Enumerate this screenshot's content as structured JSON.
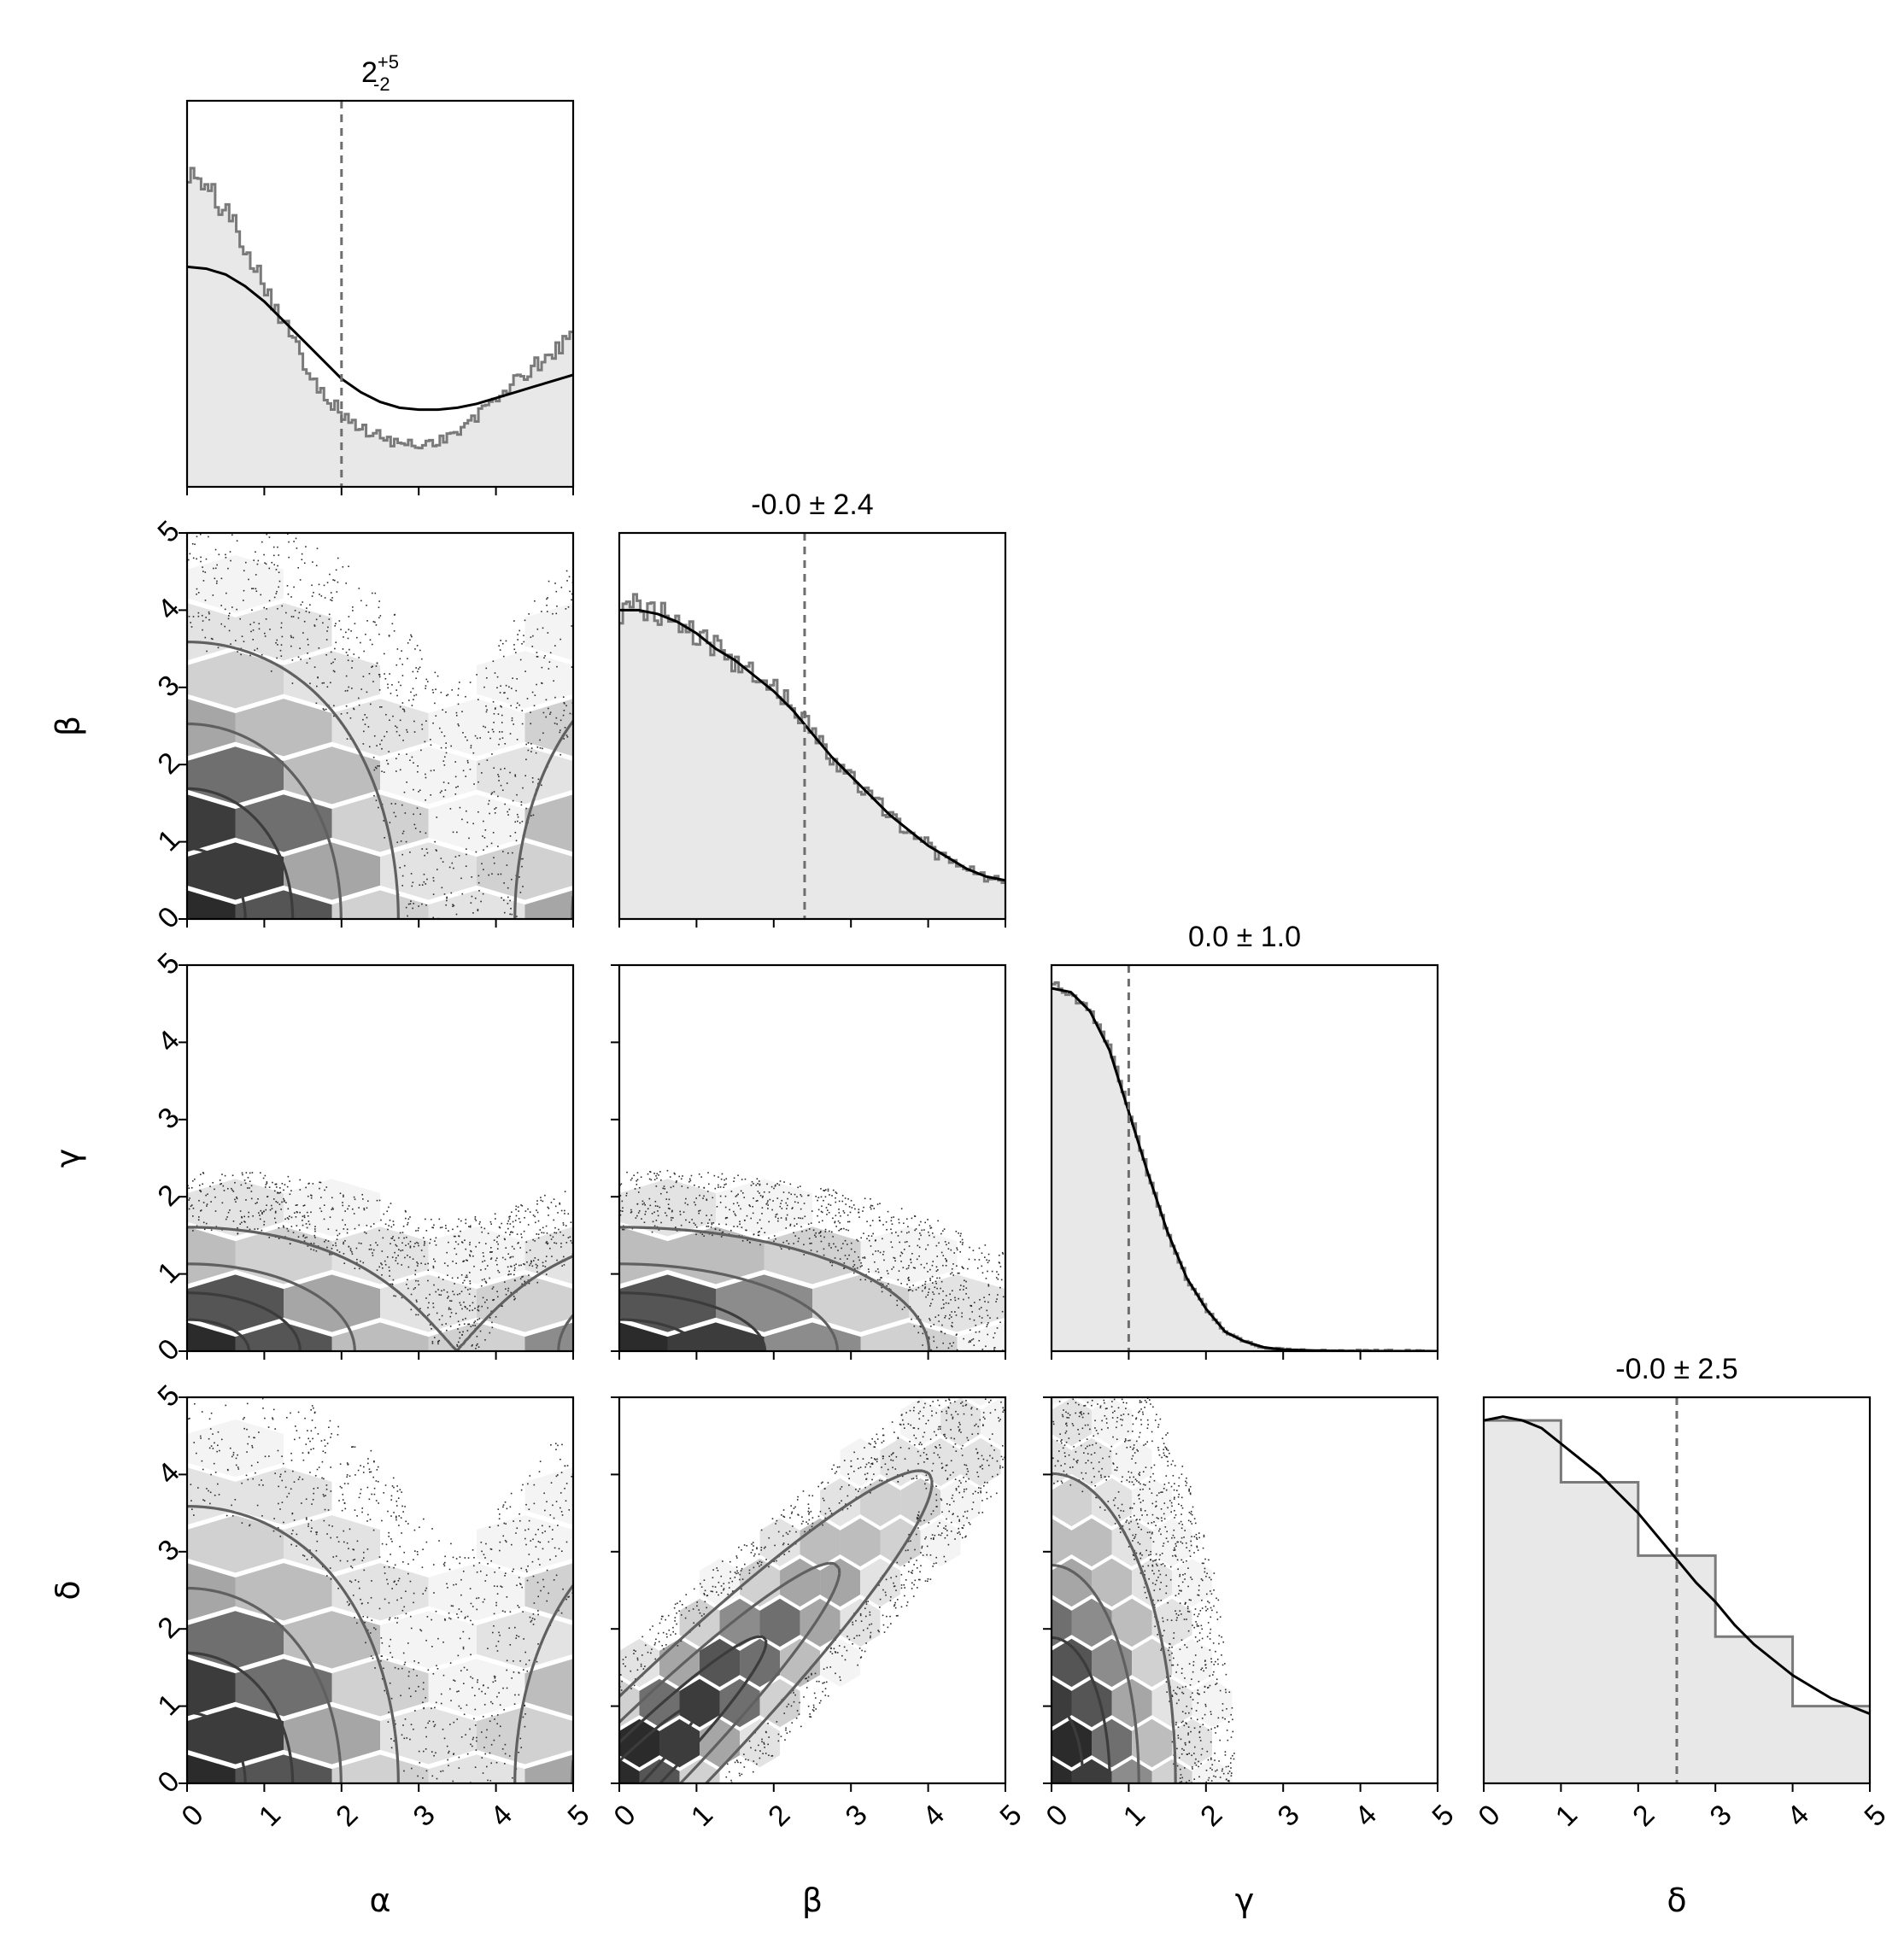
{
  "chart_data": {
    "type": "corner",
    "parameters": [
      "α",
      "β",
      "γ",
      "δ"
    ],
    "ylabels": [
      "",
      "β",
      "γ",
      "δ"
    ],
    "range": [
      0,
      5
    ],
    "ticks": [
      0,
      1,
      2,
      3,
      4,
      5
    ],
    "titles": [
      {
        "text": "2",
        "sup": "+5",
        "sub": "-2"
      },
      {
        "text": "-0.0 ± 2.4"
      },
      {
        "text": "0.0 ± 1.0"
      },
      {
        "text": "-0.0 ± 2.5"
      }
    ],
    "medians": [
      2.0,
      2.4,
      1.0,
      2.5
    ],
    "marginals": [
      {
        "parameter": "α",
        "kde_x": [
          0,
          0.25,
          0.5,
          0.75,
          1.0,
          1.25,
          1.5,
          1.75,
          2.0,
          2.25,
          2.5,
          2.75,
          3.0,
          3.25,
          3.5,
          3.75,
          4.0,
          4.25,
          4.5,
          4.75,
          5.0
        ],
        "kde_y": [
          0.57,
          0.565,
          0.55,
          0.52,
          0.48,
          0.43,
          0.38,
          0.33,
          0.28,
          0.245,
          0.22,
          0.205,
          0.2,
          0.2,
          0.205,
          0.215,
          0.23,
          0.245,
          0.26,
          0.275,
          0.29
        ],
        "hist_x": [
          0,
          0.25,
          0.5,
          0.75,
          1.0,
          1.25,
          1.5,
          1.75,
          2.0,
          2.25,
          2.5,
          2.75,
          3.0,
          3.25,
          3.5,
          3.75,
          4.0,
          4.25,
          4.5,
          4.75,
          5.0
        ],
        "hist_y": [
          0.82,
          0.77,
          0.72,
          0.63,
          0.53,
          0.43,
          0.33,
          0.25,
          0.19,
          0.15,
          0.13,
          0.11,
          0.11,
          0.12,
          0.14,
          0.18,
          0.23,
          0.27,
          0.31,
          0.35,
          0.39
        ]
      },
      {
        "parameter": "β",
        "kde_x": [
          0,
          0.25,
          0.5,
          0.75,
          1.0,
          1.25,
          1.5,
          1.75,
          2.0,
          2.25,
          2.5,
          2.75,
          3.0,
          3.25,
          3.5,
          3.75,
          4.0,
          4.25,
          4.5,
          4.75,
          5.0
        ],
        "kde_y": [
          0.8,
          0.8,
          0.79,
          0.77,
          0.74,
          0.7,
          0.67,
          0.63,
          0.59,
          0.54,
          0.48,
          0.42,
          0.37,
          0.32,
          0.27,
          0.23,
          0.19,
          0.16,
          0.13,
          0.11,
          0.1
        ],
        "hist_x": [
          0,
          0.25,
          0.5,
          0.75,
          1.0,
          1.25,
          1.5,
          1.75,
          2.0,
          2.25,
          2.5,
          2.75,
          3.0,
          3.25,
          3.5,
          3.75,
          4.0,
          4.25,
          4.5,
          4.75,
          5.0
        ],
        "hist_y": [
          0.79,
          0.81,
          0.79,
          0.78,
          0.74,
          0.7,
          0.66,
          0.63,
          0.6,
          0.55,
          0.49,
          0.42,
          0.37,
          0.32,
          0.27,
          0.23,
          0.19,
          0.15,
          0.13,
          0.11,
          0.1
        ]
      },
      {
        "parameter": "γ",
        "kde_x": [
          0,
          0.25,
          0.5,
          0.75,
          1.0,
          1.25,
          1.5,
          1.75,
          2.0,
          2.25,
          2.5,
          2.75,
          3.0,
          3.5,
          4.0,
          4.5,
          5.0
        ],
        "kde_y": [
          0.94,
          0.93,
          0.88,
          0.78,
          0.62,
          0.46,
          0.31,
          0.19,
          0.11,
          0.05,
          0.025,
          0.01,
          0.004,
          0.001,
          0,
          0,
          0
        ],
        "hist_x": [
          0,
          0.25,
          0.5,
          0.75,
          1.0,
          1.25,
          1.5,
          1.75,
          2.0,
          2.25,
          2.5,
          2.75,
          3.0,
          3.5,
          4.0,
          4.5,
          5.0
        ],
        "hist_y": [
          0.95,
          0.93,
          0.88,
          0.79,
          0.63,
          0.46,
          0.31,
          0.19,
          0.11,
          0.05,
          0.025,
          0.01,
          0.004,
          0.001,
          0,
          0,
          0
        ]
      },
      {
        "parameter": "δ",
        "kde_x": [
          0,
          0.25,
          0.5,
          0.75,
          1.0,
          1.25,
          1.5,
          1.75,
          2.0,
          2.25,
          2.5,
          2.75,
          3.0,
          3.25,
          3.5,
          3.75,
          4.0,
          4.25,
          4.5,
          4.75,
          5.0
        ],
        "kde_y": [
          0.94,
          0.95,
          0.94,
          0.92,
          0.88,
          0.84,
          0.8,
          0.75,
          0.7,
          0.64,
          0.58,
          0.52,
          0.47,
          0.41,
          0.36,
          0.32,
          0.28,
          0.25,
          0.22,
          0.2,
          0.18
        ],
        "hist_bins": [
          0,
          1,
          2,
          3,
          4,
          5
        ],
        "hist_y": [
          0.94,
          0.78,
          0.59,
          0.38,
          0.2
        ]
      }
    ],
    "pairs": [
      {
        "x": "α",
        "y": "β"
      },
      {
        "x": "α",
        "y": "γ"
      },
      {
        "x": "β",
        "y": "γ"
      },
      {
        "x": "α",
        "y": "δ"
      },
      {
        "x": "β",
        "y": "δ"
      },
      {
        "x": "γ",
        "y": "δ"
      }
    ]
  }
}
